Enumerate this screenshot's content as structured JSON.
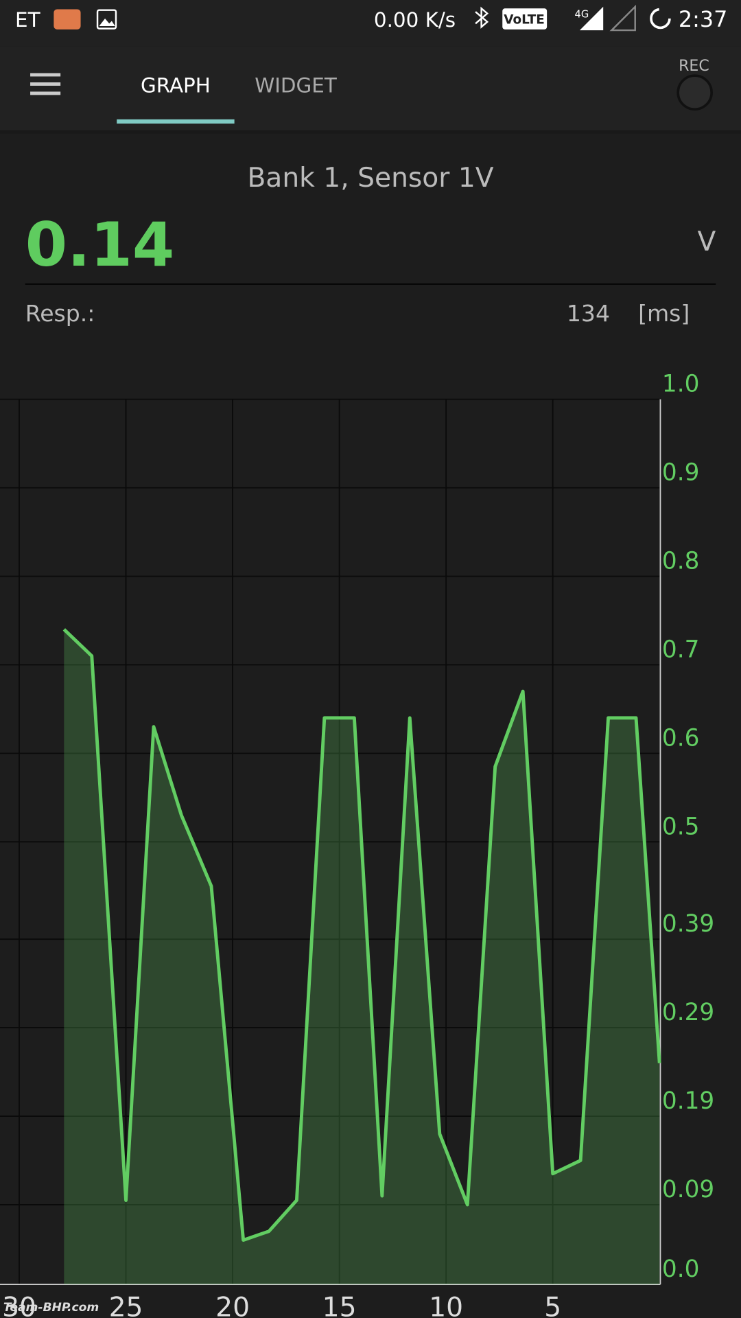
{
  "status_bar": {
    "carrier": "ET",
    "speed": "0.00 K/s",
    "volte": "VoLTE",
    "network": "4G",
    "time": "2:37"
  },
  "tabs": [
    "GRAPH",
    "WIDGET"
  ],
  "rec": "REC",
  "sensor": {
    "title": "Bank 1, Sensor 1V",
    "value": "0.14",
    "unit": "V",
    "resp_label": "Resp.:",
    "resp_value": "134",
    "resp_unit": "[ms]"
  },
  "watermark": "Team-BHP.com",
  "chart_data": {
    "type": "area",
    "x": [
      27.9,
      26.6,
      25.0,
      23.7,
      22.4,
      21.0,
      19.5,
      18.3,
      17.0,
      15.7,
      14.3,
      13.0,
      11.7,
      10.3,
      9.0,
      7.7,
      6.4,
      5.0,
      3.7,
      2.4,
      1.1,
      0.0
    ],
    "values": [
      0.74,
      0.71,
      0.095,
      0.63,
      0.53,
      0.45,
      0.05,
      0.06,
      0.095,
      0.64,
      0.64,
      0.1,
      0.64,
      0.17,
      0.09,
      0.585,
      0.67,
      0.125,
      0.14,
      0.64,
      0.64,
      0.25
    ],
    "color": "#62cd62",
    "xlim": [
      30.9,
      0
    ],
    "ylim": [
      0,
      1
    ],
    "xticks": [
      30,
      25,
      20,
      15,
      10,
      5
    ],
    "yticks": [
      {
        "value": 1,
        "label": "1.0"
      },
      0.9,
      0.8,
      0.7,
      0.6,
      0.5,
      0.39,
      0.29,
      0.19,
      0.09,
      {
        "value": 0,
        "label": "0.0"
      }
    ],
    "grid": true
  }
}
